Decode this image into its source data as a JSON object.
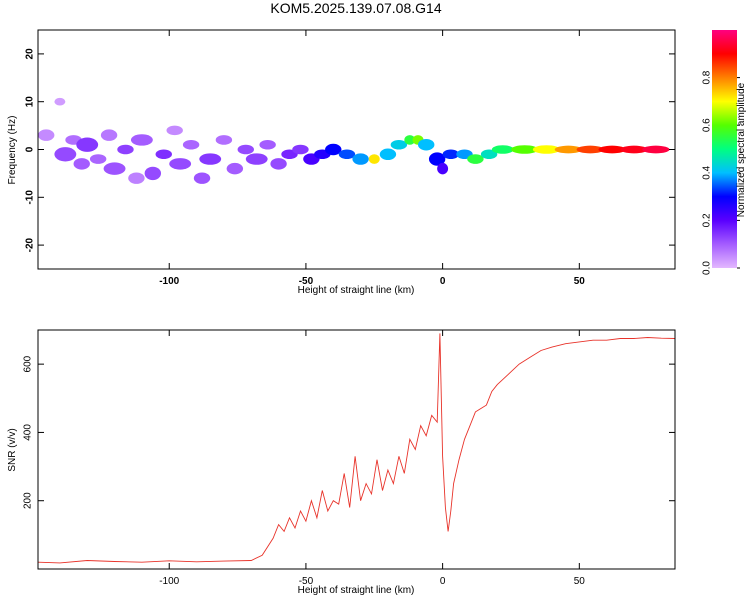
{
  "figure": {
    "title": "KOM5.2025.139.07.08.G14"
  },
  "chart_data": [
    {
      "type": "heatmap",
      "xlabel": "Height of straight line (km)",
      "ylabel": "Frequency (Hz)",
      "xlim": [
        -148,
        85
      ],
      "ylim": [
        -25,
        25
      ],
      "xticks": [
        -100,
        -50,
        0,
        50
      ],
      "yticks": [
        -20,
        -10,
        0,
        10,
        20
      ],
      "colorbar": {
        "label": "Normalized spectral amplitude",
        "range": [
          0,
          1
        ],
        "ticks": [
          "0.0",
          "0.2",
          "0.4",
          "0.6",
          "0.8"
        ],
        "stops": [
          "#e3b8ff",
          "#a45cff",
          "#5a00ff",
          "#0000ff",
          "#00bfff",
          "#00ff80",
          "#55ff00",
          "#ffff00",
          "#ff8000",
          "#ff0000",
          "#ff0080"
        ]
      },
      "blobs": [
        {
          "x": -145,
          "y": 3,
          "w": 3,
          "h": 1.2,
          "v": 0.05
        },
        {
          "x": -140,
          "y": 10,
          "w": 2,
          "h": 0.8,
          "v": 0.03
        },
        {
          "x": -138,
          "y": -1,
          "w": 4,
          "h": 1.5,
          "v": 0.12
        },
        {
          "x": -135,
          "y": 2,
          "w": 3,
          "h": 1.0,
          "v": 0.08
        },
        {
          "x": -132,
          "y": -3,
          "w": 3,
          "h": 1.2,
          "v": 0.1
        },
        {
          "x": -130,
          "y": 1,
          "w": 4,
          "h": 1.5,
          "v": 0.14
        },
        {
          "x": -126,
          "y": -2,
          "w": 3,
          "h": 1.0,
          "v": 0.09
        },
        {
          "x": -122,
          "y": 3,
          "w": 3,
          "h": 1.2,
          "v": 0.07
        },
        {
          "x": -120,
          "y": -4,
          "w": 4,
          "h": 1.3,
          "v": 0.11
        },
        {
          "x": -116,
          "y": 0,
          "w": 3,
          "h": 1.0,
          "v": 0.13
        },
        {
          "x": -112,
          "y": -6,
          "w": 3,
          "h": 1.2,
          "v": 0.06
        },
        {
          "x": -110,
          "y": 2,
          "w": 4,
          "h": 1.2,
          "v": 0.1
        },
        {
          "x": -106,
          "y": -5,
          "w": 3,
          "h": 1.4,
          "v": 0.12
        },
        {
          "x": -102,
          "y": -1,
          "w": 3,
          "h": 1.0,
          "v": 0.15
        },
        {
          "x": -98,
          "y": 4,
          "w": 3,
          "h": 1.0,
          "v": 0.05
        },
        {
          "x": -96,
          "y": -3,
          "w": 4,
          "h": 1.2,
          "v": 0.12
        },
        {
          "x": -92,
          "y": 1,
          "w": 3,
          "h": 1.0,
          "v": 0.09
        },
        {
          "x": -88,
          "y": -6,
          "w": 3,
          "h": 1.2,
          "v": 0.11
        },
        {
          "x": -85,
          "y": -2,
          "w": 4,
          "h": 1.2,
          "v": 0.14
        },
        {
          "x": -80,
          "y": 2,
          "w": 3,
          "h": 1.0,
          "v": 0.08
        },
        {
          "x": -76,
          "y": -4,
          "w": 3,
          "h": 1.2,
          "v": 0.1
        },
        {
          "x": -72,
          "y": 0,
          "w": 3,
          "h": 1.0,
          "v": 0.12
        },
        {
          "x": -68,
          "y": -2,
          "w": 4,
          "h": 1.2,
          "v": 0.13
        },
        {
          "x": -64,
          "y": 1,
          "w": 3,
          "h": 1.0,
          "v": 0.1
        },
        {
          "x": -60,
          "y": -3,
          "w": 3,
          "h": 1.2,
          "v": 0.12
        },
        {
          "x": -56,
          "y": -1,
          "w": 3,
          "h": 1.0,
          "v": 0.16
        },
        {
          "x": -52,
          "y": 0,
          "w": 3,
          "h": 1.0,
          "v": 0.14
        },
        {
          "x": -48,
          "y": -2,
          "w": 3,
          "h": 1.2,
          "v": 0.22
        },
        {
          "x": -44,
          "y": -1,
          "w": 3,
          "h": 1.0,
          "v": 0.26
        },
        {
          "x": -40,
          "y": 0,
          "w": 3,
          "h": 1.2,
          "v": 0.3
        },
        {
          "x": -35,
          "y": -1,
          "w": 3,
          "h": 1.0,
          "v": 0.34
        },
        {
          "x": -30,
          "y": -2,
          "w": 3,
          "h": 1.2,
          "v": 0.38
        },
        {
          "x": -25,
          "y": -2,
          "w": 2,
          "h": 1.0,
          "v": 0.72
        },
        {
          "x": -20,
          "y": -1,
          "w": 3,
          "h": 1.2,
          "v": 0.4
        },
        {
          "x": -16,
          "y": 1,
          "w": 3,
          "h": 1.0,
          "v": 0.42
        },
        {
          "x": -12,
          "y": 2,
          "w": 2,
          "h": 1.0,
          "v": 0.55
        },
        {
          "x": -9,
          "y": 2,
          "w": 2,
          "h": 1.0,
          "v": 0.62
        },
        {
          "x": -6,
          "y": 1,
          "w": 3,
          "h": 1.2,
          "v": 0.4
        },
        {
          "x": -2,
          "y": -2,
          "w": 3,
          "h": 1.4,
          "v": 0.3
        },
        {
          "x": 0,
          "y": -4,
          "w": 2,
          "h": 1.2,
          "v": 0.22
        },
        {
          "x": 3,
          "y": -1,
          "w": 3,
          "h": 1.0,
          "v": 0.32
        },
        {
          "x": 8,
          "y": -1,
          "w": 3,
          "h": 1.0,
          "v": 0.38
        },
        {
          "x": 12,
          "y": -2,
          "w": 3,
          "h": 1.0,
          "v": 0.55
        },
        {
          "x": 17,
          "y": -1,
          "w": 3,
          "h": 1.0,
          "v": 0.45
        },
        {
          "x": 22,
          "y": 0,
          "w": 4,
          "h": 0.9,
          "v": 0.52
        },
        {
          "x": 30,
          "y": 0,
          "w": 5,
          "h": 0.9,
          "v": 0.6
        },
        {
          "x": 38,
          "y": 0,
          "w": 5,
          "h": 0.9,
          "v": 0.7
        },
        {
          "x": 46,
          "y": 0,
          "w": 5,
          "h": 0.8,
          "v": 0.78
        },
        {
          "x": 54,
          "y": 0,
          "w": 5,
          "h": 0.8,
          "v": 0.85
        },
        {
          "x": 62,
          "y": 0,
          "w": 5,
          "h": 0.8,
          "v": 0.9
        },
        {
          "x": 70,
          "y": 0,
          "w": 5,
          "h": 0.8,
          "v": 0.92
        },
        {
          "x": 78,
          "y": 0,
          "w": 5,
          "h": 0.8,
          "v": 0.95
        }
      ]
    },
    {
      "type": "line",
      "xlabel": "Height of straight line (km)",
      "ylabel": "SNR (v/v)",
      "xlim": [
        -148,
        85
      ],
      "ylim": [
        0,
        700
      ],
      "xticks": [
        -100,
        -50,
        0,
        50
      ],
      "yticks": [
        200,
        400,
        600
      ],
      "color": "#e8332a",
      "x": [
        -148,
        -140,
        -130,
        -120,
        -110,
        -100,
        -90,
        -80,
        -70,
        -66,
        -62,
        -60,
        -58,
        -56,
        -54,
        -52,
        -50,
        -48,
        -46,
        -44,
        -42,
        -40,
        -38,
        -36,
        -34,
        -32,
        -30,
        -28,
        -26,
        -24,
        -22,
        -20,
        -18,
        -16,
        -14,
        -12,
        -10,
        -8,
        -6,
        -4,
        -2,
        -1,
        0,
        1,
        2,
        3,
        4,
        6,
        8,
        10,
        12,
        14,
        16,
        18,
        20,
        24,
        28,
        32,
        36,
        40,
        45,
        50,
        55,
        60,
        65,
        70,
        75,
        80,
        85
      ],
      "y": [
        20,
        18,
        25,
        22,
        20,
        24,
        21,
        23,
        25,
        40,
        90,
        130,
        110,
        150,
        120,
        170,
        140,
        200,
        150,
        230,
        170,
        200,
        190,
        280,
        180,
        330,
        200,
        250,
        220,
        320,
        230,
        290,
        250,
        330,
        280,
        380,
        350,
        420,
        390,
        450,
        430,
        690,
        330,
        180,
        110,
        170,
        250,
        320,
        380,
        420,
        460,
        470,
        480,
        520,
        540,
        570,
        600,
        620,
        640,
        650,
        660,
        665,
        670,
        670,
        675,
        675,
        678,
        676,
        675
      ]
    }
  ]
}
